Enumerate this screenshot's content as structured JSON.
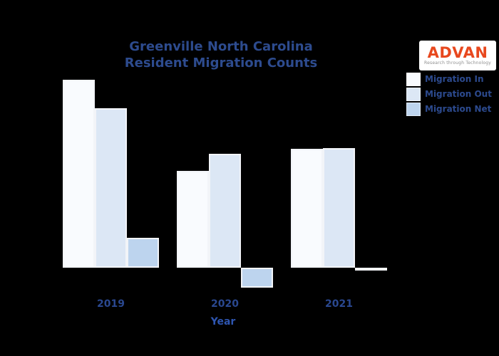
{
  "title": {
    "line1": "Greenville North Carolina",
    "line2": "Resident Migration Counts"
  },
  "logo": {
    "brand": "ADVAN",
    "tagline": "Research through Technology",
    "brand_color": "#e8481e"
  },
  "legend": {
    "items": [
      {
        "label": "Migration In"
      },
      {
        "label": "Migration Out"
      },
      {
        "label": "Migration Net"
      }
    ]
  },
  "axis": {
    "xlabel": "Year"
  },
  "colors": {
    "background": "#000000",
    "text_navy": "#2d4b8e",
    "bar_in": "#f9fbfe",
    "bar_out": "#dce7f5",
    "bar_net": "#bdd4ee",
    "bar_edge": "#f2f4f8"
  },
  "chart_data": {
    "type": "bar",
    "title": "Greenville North Carolina Resident Migration Counts",
    "categories": [
      "2019",
      "2020",
      "2021"
    ],
    "series": [
      {
        "name": "Migration In",
        "color": "#f9fbfe",
        "values": [
          264,
          136,
          167
        ]
      },
      {
        "name": "Migration Out",
        "color": "#dce7f5",
        "values": [
          224,
          160,
          168
        ]
      },
      {
        "name": "Migration Net",
        "color": "#bdd4ee",
        "values": [
          42,
          -28,
          -4
        ]
      }
    ],
    "xlabel": "Year",
    "ylabel": "",
    "ylim": [
      -40,
      280
    ],
    "value_scale": "relative bar heights in pixels; no y-axis tick labels visible in chart",
    "grid": false,
    "legend_position": "upper right"
  }
}
